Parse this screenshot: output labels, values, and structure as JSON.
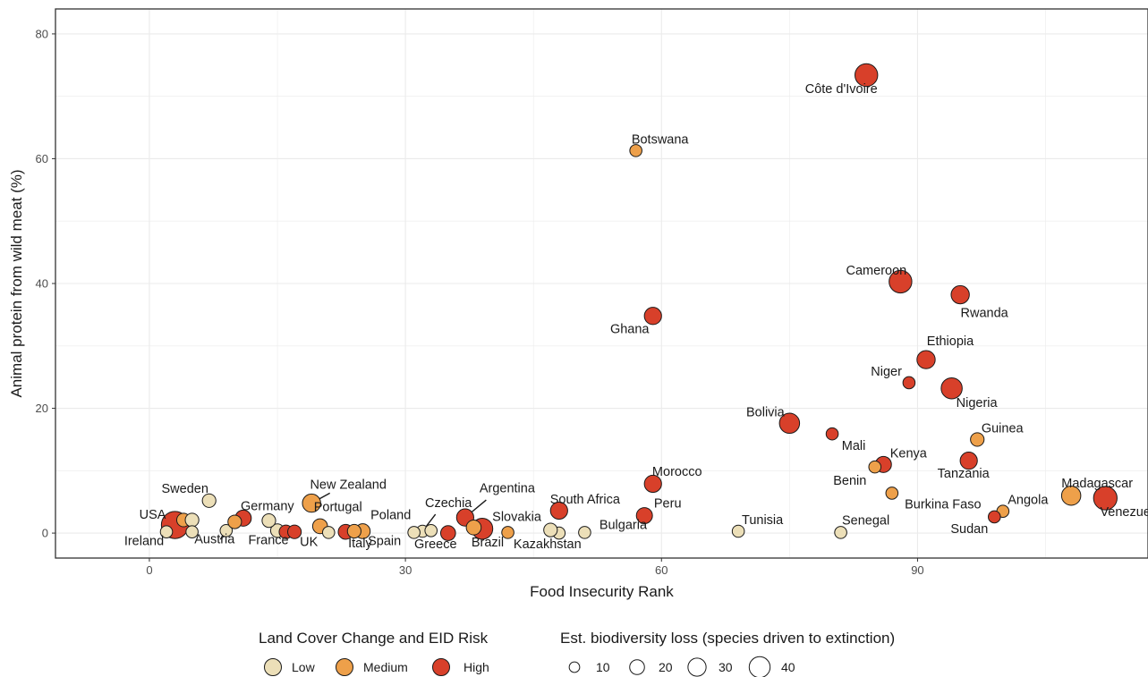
{
  "chart_data": {
    "type": "scatter",
    "title": "",
    "xlabel": "Food Insecurity Rank",
    "ylabel": "Animal protein from wild meat (%)",
    "xlim": [
      -11,
      117
    ],
    "ylim": [
      -4,
      84
    ],
    "x_ticks": [
      0,
      30,
      60,
      90
    ],
    "y_ticks": [
      0,
      20,
      40,
      60,
      80
    ],
    "grid": true,
    "colors": {
      "Low": "#ecdfb8",
      "Medium": "#eea04a",
      "High": "#d8402a"
    },
    "legend_position": "bottom",
    "color_legend": {
      "title": "Land Cover Change and EID Risk",
      "items": [
        "Low",
        "Medium",
        "High"
      ]
    },
    "size_legend": {
      "title": "Est. biodiversity loss (species driven to extinction)",
      "items": [
        10,
        20,
        30,
        40
      ]
    },
    "points": [
      {
        "label": "Côte d'Ivoire",
        "x": 84,
        "y": 73.4,
        "risk": "High",
        "loss": 28
      },
      {
        "label": "Botswana",
        "x": 57,
        "y": 61.3,
        "risk": "Medium",
        "loss": 8
      },
      {
        "label": "Cameroon",
        "x": 88,
        "y": 40.3,
        "risk": "High",
        "loss": 28
      },
      {
        "label": "Rwanda",
        "x": 95,
        "y": 38.2,
        "risk": "High",
        "loss": 18
      },
      {
        "label": "Ghana",
        "x": 59,
        "y": 34.8,
        "risk": "High",
        "loss": 16
      },
      {
        "label": "Ethiopia",
        "x": 91,
        "y": 27.8,
        "risk": "High",
        "loss": 18
      },
      {
        "label": "Niger",
        "x": 89,
        "y": 24.1,
        "risk": "High",
        "loss": 8
      },
      {
        "label": "Nigeria",
        "x": 94,
        "y": 23.2,
        "risk": "High",
        "loss": 24
      },
      {
        "label": "Bolivia",
        "x": 75,
        "y": 17.6,
        "risk": "High",
        "loss": 22
      },
      {
        "label": "Mali",
        "x": 80,
        "y": 15.9,
        "risk": "High",
        "loss": 8
      },
      {
        "label": "Guinea",
        "x": 97,
        "y": 15.0,
        "risk": "Medium",
        "loss": 10
      },
      {
        "label": "Kenya",
        "x": 86,
        "y": 11.0,
        "risk": "High",
        "loss": 14
      },
      {
        "label": "Benin",
        "x": 85,
        "y": 10.6,
        "risk": "Medium",
        "loss": 8
      },
      {
        "label": "Tanzania",
        "x": 96,
        "y": 11.6,
        "risk": "High",
        "loss": 16
      },
      {
        "label": "Morocco",
        "x": 59,
        "y": 7.9,
        "risk": "High",
        "loss": 16
      },
      {
        "label": "Burkina Faso",
        "x": 87,
        "y": 6.4,
        "risk": "Medium",
        "loss": 8
      },
      {
        "label": "Madagascar",
        "x": 108,
        "y": 6.0,
        "risk": "Medium",
        "loss": 20
      },
      {
        "label": "Venezuela",
        "x": 112,
        "y": 5.6,
        "risk": "High",
        "loss": 30
      },
      {
        "label": "New Zealand",
        "x": 19,
        "y": 4.8,
        "risk": "Medium",
        "loss": 18
      },
      {
        "label": "Sweden",
        "x": 7,
        "y": 5.2,
        "risk": "Low",
        "loss": 10
      },
      {
        "label": "South Africa",
        "x": 48,
        "y": 3.6,
        "risk": "High",
        "loss": 16
      },
      {
        "label": "Angola",
        "x": 100,
        "y": 3.5,
        "risk": "Medium",
        "loss": 8
      },
      {
        "label": "Peru",
        "x": 58,
        "y": 2.8,
        "risk": "High",
        "loss": 14
      },
      {
        "label": "Sudan",
        "x": 99,
        "y": 2.6,
        "risk": "High",
        "loss": 8
      },
      {
        "label": "Argentina",
        "x": 37,
        "y": 2.5,
        "risk": "High",
        "loss": 16
      },
      {
        "label": "Germany",
        "x": 11,
        "y": 2.4,
        "risk": "High",
        "loss": 14
      },
      {
        "label": "USA",
        "x": 3,
        "y": 1.3,
        "risk": "High",
        "loss": 40
      },
      {
        "label": "Portugal",
        "x": 20,
        "y": 1.1,
        "risk": "Medium",
        "loss": 12
      },
      {
        "label": "Brazil",
        "x": 39,
        "y": 0.7,
        "risk": "High",
        "loss": 24
      },
      {
        "label": "Tunisia",
        "x": 69,
        "y": 0.3,
        "risk": "Low",
        "loss": 8
      },
      {
        "label": "Senegal",
        "x": 81,
        "y": 0.1,
        "risk": "Low",
        "loss": 8
      },
      {
        "label": "Slovakia",
        "x": 42,
        "y": 0.1,
        "risk": "Medium",
        "loss": 8
      },
      {
        "label": "Bulgaria",
        "x": 51,
        "y": 0.1,
        "risk": "Low",
        "loss": 8
      },
      {
        "label": "Kazakhstan",
        "x": 48,
        "y": 0.0,
        "risk": "Low",
        "loss": 8
      },
      {
        "label": "Greece",
        "x": 35,
        "y": 0.0,
        "risk": "High",
        "loss": 12
      },
      {
        "label": "Czechia",
        "x": 32,
        "y": 0.3,
        "risk": "Low",
        "loss": 8
      },
      {
        "label": "Spain",
        "x": 31,
        "y": 0.1,
        "risk": "Low",
        "loss": 8
      },
      {
        "label": "Poland",
        "x": 33,
        "y": 0.4,
        "risk": "Low",
        "loss": 8
      },
      {
        "label": "Italy",
        "x": 25,
        "y": 0.3,
        "risk": "Medium",
        "loss": 12
      },
      {
        "label": "UK",
        "x": 21,
        "y": 0.1,
        "risk": "Low",
        "loss": 8
      },
      {
        "label": "France",
        "x": 15,
        "y": 0.4,
        "risk": "Low",
        "loss": 10
      },
      {
        "label": "Austria",
        "x": 9,
        "y": 0.4,
        "risk": "Low",
        "loss": 8
      },
      {
        "label": "Ireland",
        "x": 2,
        "y": 0.2,
        "risk": "Low",
        "loss": 8
      },
      {
        "label": "",
        "x": 4,
        "y": 2.1,
        "risk": "Medium",
        "loss": 10
      },
      {
        "label": "",
        "x": 5,
        "y": 2.1,
        "risk": "Low",
        "loss": 10
      },
      {
        "label": "",
        "x": 5,
        "y": 0.2,
        "risk": "Low",
        "loss": 8
      },
      {
        "label": "",
        "x": 10,
        "y": 1.8,
        "risk": "Medium",
        "loss": 10
      },
      {
        "label": "",
        "x": 14,
        "y": 2.0,
        "risk": "Low",
        "loss": 10
      },
      {
        "label": "",
        "x": 16,
        "y": 0.2,
        "risk": "High",
        "loss": 10
      },
      {
        "label": "",
        "x": 17,
        "y": 0.2,
        "risk": "High",
        "loss": 10
      },
      {
        "label": "",
        "x": 23,
        "y": 0.2,
        "risk": "High",
        "loss": 12
      },
      {
        "label": "",
        "x": 24,
        "y": 0.3,
        "risk": "Medium",
        "loss": 10
      },
      {
        "label": "",
        "x": 38,
        "y": 0.9,
        "risk": "Medium",
        "loss": 12
      },
      {
        "label": "",
        "x": 47,
        "y": 0.5,
        "risk": "Low",
        "loss": 10
      }
    ]
  }
}
